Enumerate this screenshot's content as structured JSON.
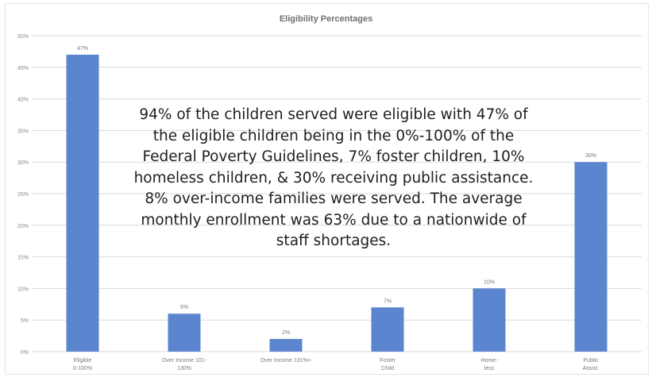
{
  "chart_data": {
    "type": "bar",
    "title": "Eligibility Percentages",
    "categories": [
      [
        "Eligible",
        "0-100%"
      ],
      [
        "Over Income 101-",
        "130%"
      ],
      [
        "Over Income 131%+"
      ],
      [
        "Foster",
        "Child"
      ],
      [
        "Home-",
        "less"
      ],
      [
        "Public",
        "Assist."
      ]
    ],
    "values": [
      47,
      6,
      2,
      7,
      10,
      30
    ],
    "data_labels": [
      "47%",
      "6%",
      "2%",
      "7%",
      "10%",
      "30%"
    ],
    "ylim": [
      0,
      50
    ],
    "yticks": [
      0,
      5,
      10,
      15,
      20,
      25,
      30,
      35,
      40,
      45,
      50
    ],
    "ytick_labels": [
      "0%",
      "5%",
      "10%",
      "15%",
      "20%",
      "25%",
      "30%",
      "35%",
      "40%",
      "45%",
      "50%"
    ],
    "grid": true,
    "bar_color": "#5b86cf",
    "grid_color": "#d9d9d9"
  },
  "overlay_text": "94% of the children served were eligible with 47% of the eligible children being in the 0%-100% of the Federal Poverty Guidelines, 7% foster children, 10% homeless children, & 30% receiving public assistance. 8% over-income families were served. The average monthly enrollment was 63% due to a nationwide of staff shortages."
}
